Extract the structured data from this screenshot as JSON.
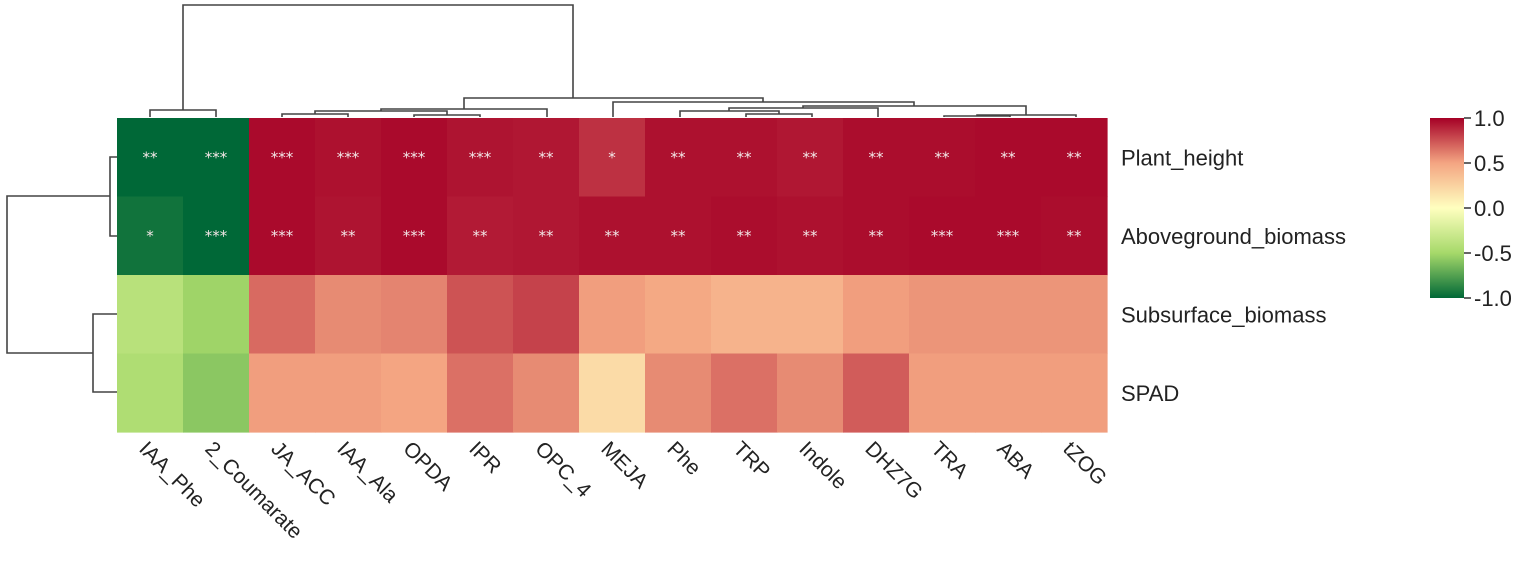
{
  "chart_data": {
    "type": "heatmap",
    "rows": [
      "Plant_height",
      "Aboveground_biomass",
      "Subsurface_biomass",
      "SPAD"
    ],
    "columns": [
      "IAA_Phe",
      "2_Coumarate",
      "JA_ACC",
      "IAA_Ala",
      "OPDA",
      "IPR",
      "OPC_4",
      "MEJA",
      "Phe",
      "TRP",
      "Indole",
      "DHZ7G",
      "TRA",
      "ABA",
      "tZOG"
    ],
    "values": [
      [
        -1.0,
        -1.0,
        0.97,
        0.95,
        0.97,
        0.94,
        0.93,
        0.85,
        0.95,
        0.95,
        0.93,
        0.96,
        0.96,
        0.97,
        0.97
      ],
      [
        -0.95,
        -1.0,
        0.97,
        0.94,
        0.97,
        0.92,
        0.93,
        0.95,
        0.95,
        0.96,
        0.95,
        0.96,
        0.97,
        0.97,
        0.96
      ],
      [
        -0.4,
        -0.52,
        0.68,
        0.58,
        0.6,
        0.75,
        0.8,
        0.52,
        0.48,
        0.42,
        0.42,
        0.52,
        0.55,
        0.55,
        0.55
      ],
      [
        -0.45,
        -0.58,
        0.52,
        0.52,
        0.5,
        0.66,
        0.58,
        0.2,
        0.58,
        0.66,
        0.58,
        0.72,
        0.52,
        0.52,
        0.52
      ]
    ],
    "significance": [
      [
        "**",
        "***",
        "***",
        "***",
        "***",
        "***",
        "**",
        "*",
        "**",
        "**",
        "**",
        "**",
        "**",
        "**",
        "**"
      ],
      [
        "*",
        "***",
        "***",
        "**",
        "***",
        "**",
        "**",
        "**",
        "**",
        "**",
        "**",
        "**",
        "***",
        "***",
        "**"
      ],
      [
        "",
        "",
        "",
        "",
        "",
        "",
        "",
        "",
        "",
        "",
        "",
        "",
        "",
        "",
        ""
      ],
      [
        "",
        "",
        "",
        "",
        "",
        "",
        "",
        "",
        "",
        "",
        "",
        "",
        "",
        "",
        ""
      ]
    ],
    "colorbar": {
      "min": -1.0,
      "max": 1.0,
      "ticks": [
        1.0,
        0.5,
        0.0,
        -0.5,
        -1.0
      ],
      "tick_labels": [
        "1.0",
        "0.5",
        "0.0",
        "-0.5",
        "-1.0"
      ],
      "colors": [
        "#006837",
        "#a6d96a",
        "#ffffbf",
        "#f4a582",
        "#a50026"
      ]
    },
    "row_dendrogram": true,
    "column_dendrogram": true,
    "grid": false
  }
}
